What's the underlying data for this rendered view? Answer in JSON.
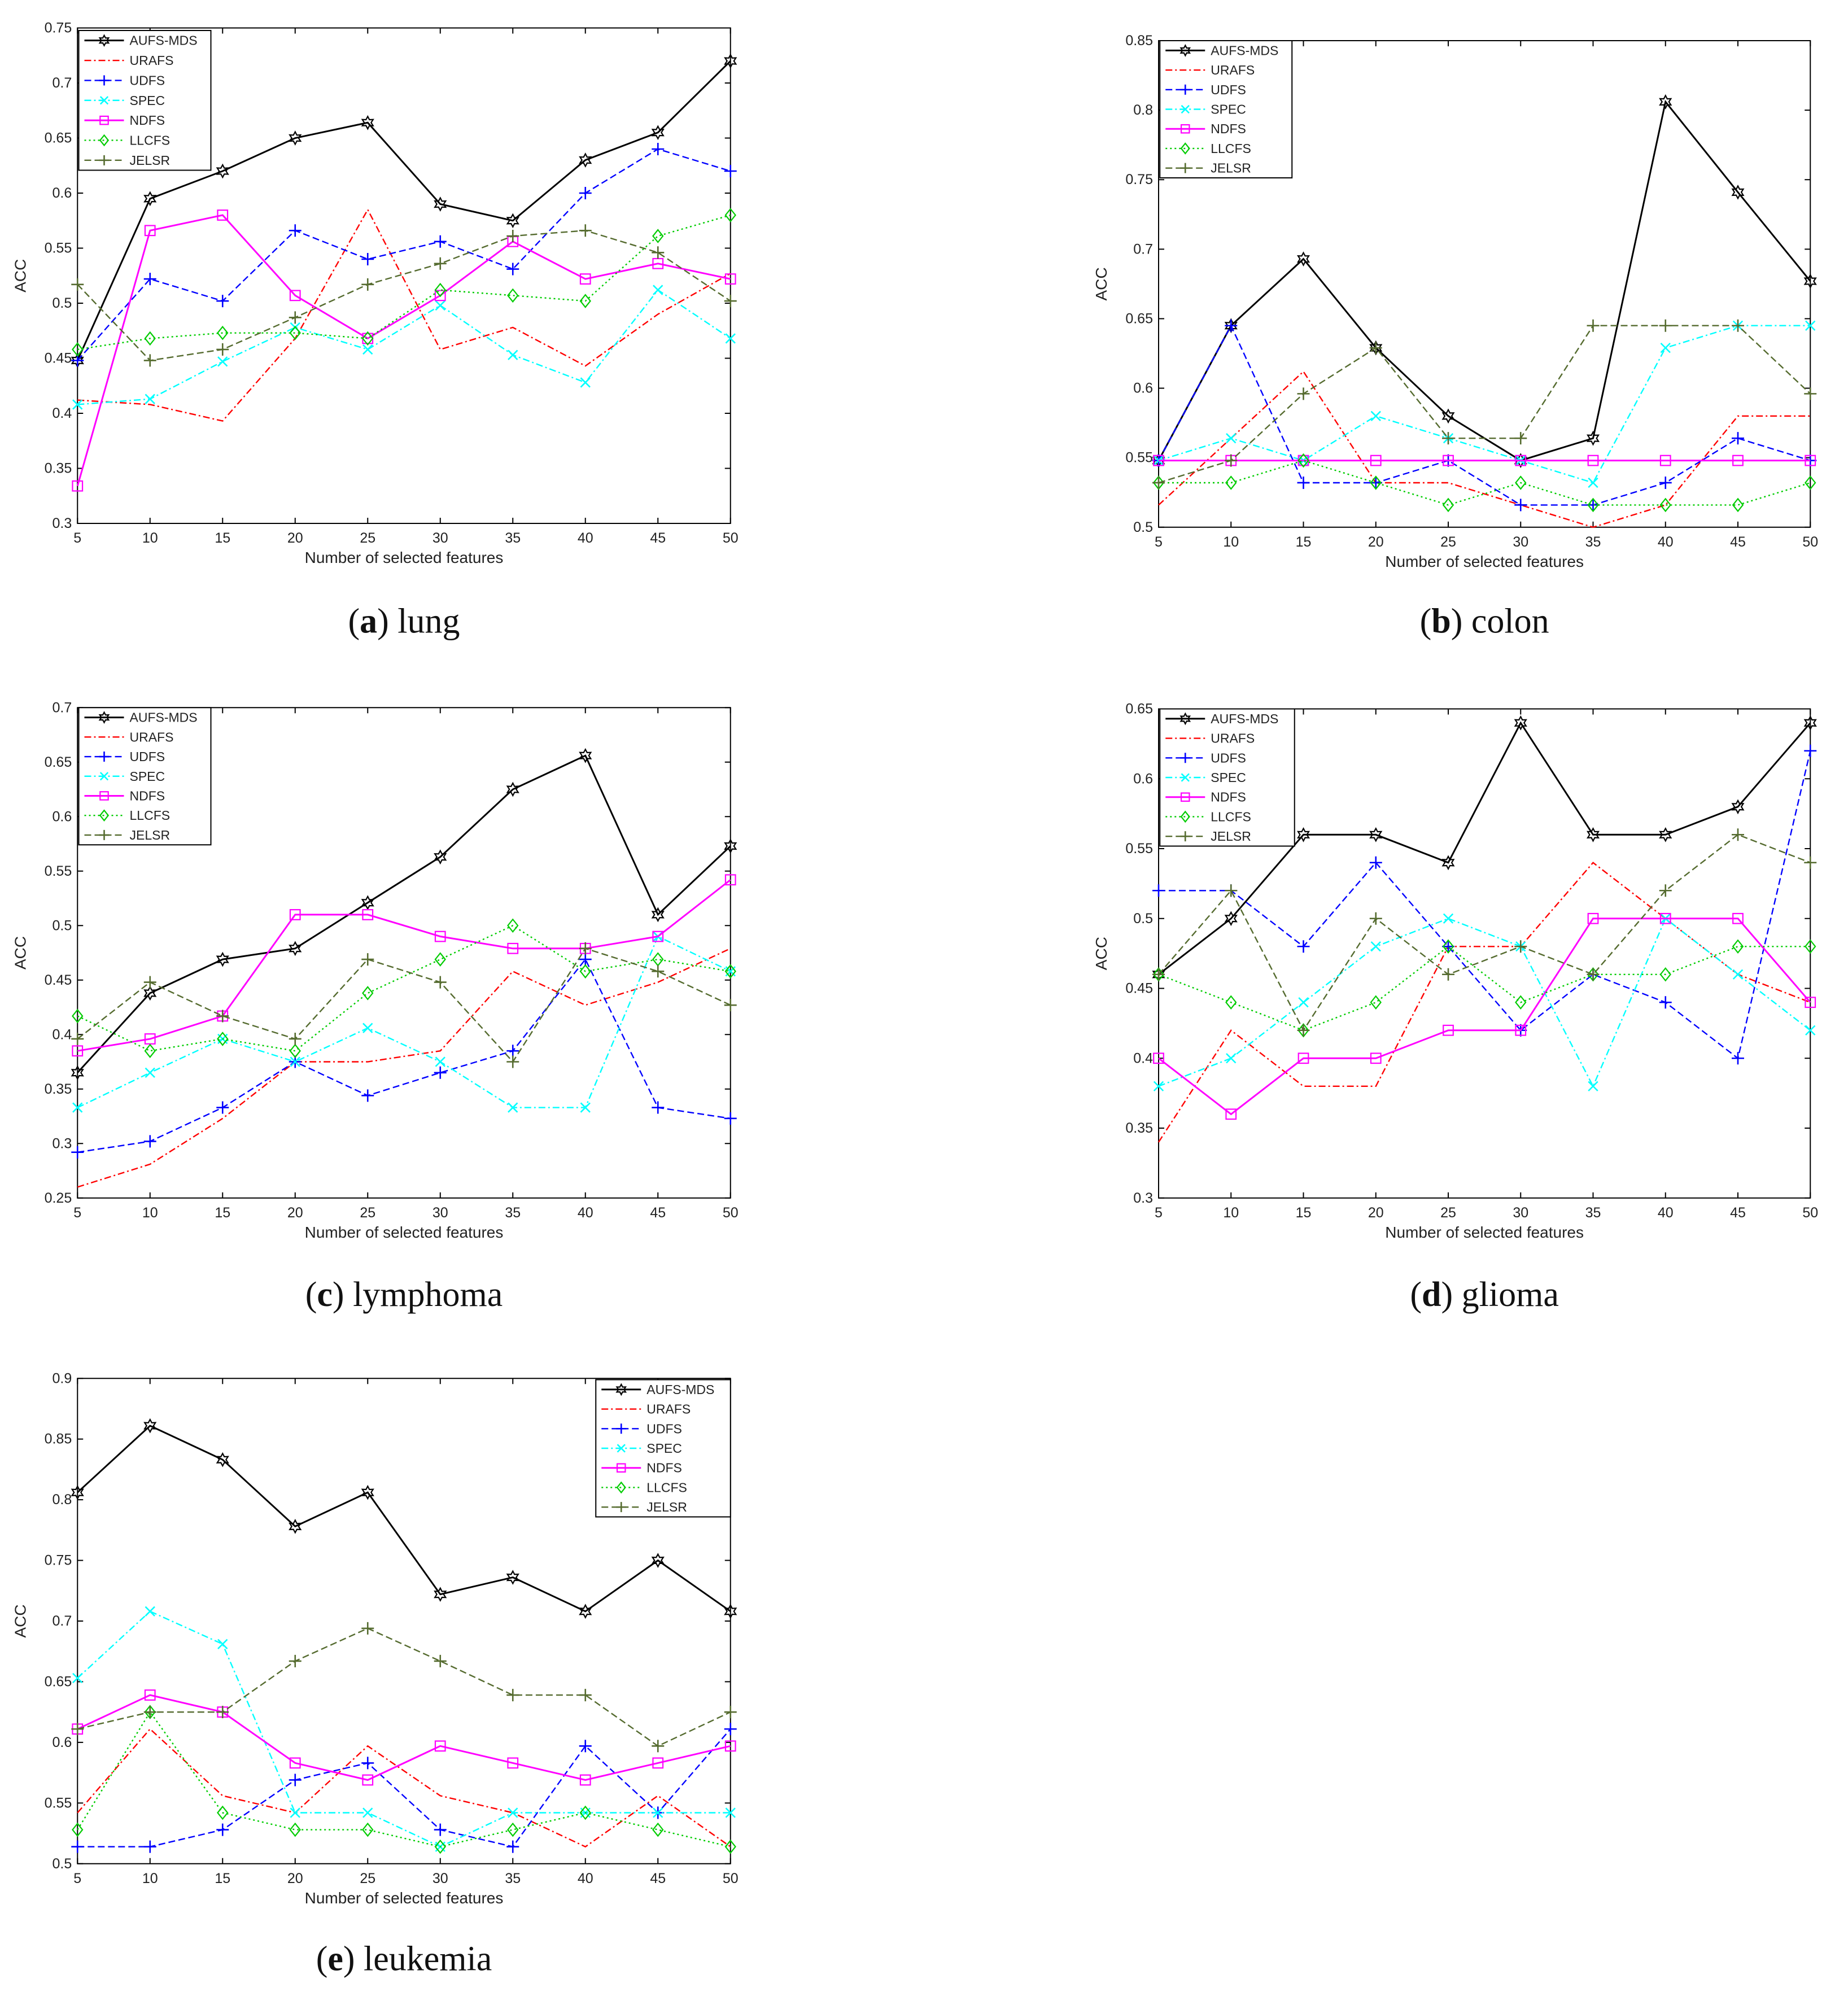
{
  "chart_data": [
    {
      "id": "a",
      "type": "line",
      "caption_label": "(a)",
      "caption_name": "lung",
      "xlabel": "Number of selected features",
      "ylabel": "ACC",
      "xlim": [
        5,
        50
      ],
      "ylim": [
        0.3,
        0.75
      ],
      "x": [
        5,
        10,
        15,
        20,
        25,
        30,
        35,
        40,
        45,
        50
      ],
      "xticks": [
        "5",
        "10",
        "15",
        "20",
        "25",
        "30",
        "35",
        "40",
        "45",
        "50"
      ],
      "yticks": [
        "0.3",
        "0.35",
        "0.4",
        "0.45",
        "0.5",
        "0.55",
        "0.6",
        "0.65",
        "0.7",
        "0.75"
      ],
      "legend_position": "top-left",
      "series": [
        {
          "name": "AUFS-MDS",
          "values": [
            0.448,
            0.595,
            0.62,
            0.65,
            0.664,
            0.59,
            0.575,
            0.63,
            0.655,
            0.72
          ]
        },
        {
          "name": "URAFS",
          "values": [
            0.412,
            0.408,
            0.393,
            0.468,
            0.585,
            0.458,
            0.478,
            0.443,
            0.49,
            0.527
          ]
        },
        {
          "name": "UDFS",
          "values": [
            0.448,
            0.522,
            0.502,
            0.566,
            0.54,
            0.556,
            0.531,
            0.6,
            0.64,
            0.62
          ]
        },
        {
          "name": "SPEC",
          "values": [
            0.408,
            0.413,
            0.447,
            0.478,
            0.458,
            0.498,
            0.453,
            0.428,
            0.512,
            0.468
          ]
        },
        {
          "name": "NDFS",
          "values": [
            0.334,
            0.566,
            0.58,
            0.507,
            0.468,
            0.507,
            0.556,
            0.522,
            0.536,
            0.522
          ]
        },
        {
          "name": "LLCFS",
          "values": [
            0.458,
            0.468,
            0.473,
            0.473,
            0.468,
            0.512,
            0.507,
            0.502,
            0.561,
            0.58
          ]
        },
        {
          "name": "JELSR",
          "values": [
            0.517,
            0.448,
            0.458,
            0.487,
            0.517,
            0.536,
            0.561,
            0.566,
            0.546,
            0.502
          ]
        }
      ]
    },
    {
      "id": "b",
      "type": "line",
      "caption_label": "(b)",
      "caption_name": "colon",
      "xlabel": "Number of selected features",
      "ylabel": "ACC",
      "xlim": [
        5,
        50
      ],
      "ylim": [
        0.5,
        0.85
      ],
      "x": [
        5,
        10,
        15,
        20,
        25,
        30,
        35,
        40,
        45,
        50
      ],
      "xticks": [
        "5",
        "10",
        "15",
        "20",
        "25",
        "30",
        "35",
        "40",
        "45",
        "50"
      ],
      "yticks": [
        "0.5",
        "0.55",
        "0.6",
        "0.65",
        "0.7",
        "0.75",
        "0.8",
        "0.85"
      ],
      "legend_position": "top-left",
      "series": [
        {
          "name": "AUFS-MDS",
          "values": [
            0.548,
            0.645,
            0.693,
            0.629,
            0.58,
            0.548,
            0.564,
            0.806,
            0.741,
            0.677
          ]
        },
        {
          "name": "URAFS",
          "values": [
            0.516,
            0.564,
            0.612,
            0.532,
            0.532,
            0.516,
            0.5,
            0.516,
            0.58,
            0.58
          ]
        },
        {
          "name": "UDFS",
          "values": [
            0.548,
            0.645,
            0.532,
            0.532,
            0.548,
            0.516,
            0.516,
            0.532,
            0.564,
            0.548
          ]
        },
        {
          "name": "SPEC",
          "values": [
            0.548,
            0.564,
            0.548,
            0.58,
            0.564,
            0.548,
            0.532,
            0.629,
            0.645,
            0.645
          ]
        },
        {
          "name": "NDFS",
          "values": [
            0.548,
            0.548,
            0.548,
            0.548,
            0.548,
            0.548,
            0.548,
            0.548,
            0.548,
            0.548
          ]
        },
        {
          "name": "LLCFS",
          "values": [
            0.532,
            0.532,
            0.548,
            0.532,
            0.516,
            0.532,
            0.516,
            0.516,
            0.516,
            0.532
          ]
        },
        {
          "name": "JELSR",
          "values": [
            0.532,
            0.548,
            0.596,
            0.629,
            0.564,
            0.564,
            0.645,
            0.645,
            0.645,
            0.596
          ]
        }
      ]
    },
    {
      "id": "c",
      "type": "line",
      "caption_label": "(c)",
      "caption_name": "lymphoma",
      "xlabel": "Number of selected features",
      "ylabel": "ACC",
      "xlim": [
        5,
        50
      ],
      "ylim": [
        0.25,
        0.7
      ],
      "x": [
        5,
        10,
        15,
        20,
        25,
        30,
        35,
        40,
        45,
        50
      ],
      "xticks": [
        "5",
        "10",
        "15",
        "20",
        "25",
        "30",
        "35",
        "40",
        "45",
        "50"
      ],
      "yticks": [
        "0.25",
        "0.3",
        "0.35",
        "0.4",
        "0.45",
        "0.5",
        "0.55",
        "0.6",
        "0.65",
        "0.7"
      ],
      "legend_position": "top-left",
      "series": [
        {
          "name": "AUFS-MDS",
          "values": [
            0.365,
            0.438,
            0.469,
            0.479,
            0.521,
            0.563,
            0.625,
            0.656,
            0.51,
            0.573
          ]
        },
        {
          "name": "URAFS",
          "values": [
            0.26,
            0.281,
            0.323,
            0.375,
            0.375,
            0.385,
            0.458,
            0.427,
            0.448,
            0.479
          ]
        },
        {
          "name": "UDFS",
          "values": [
            0.292,
            0.302,
            0.333,
            0.375,
            0.344,
            0.365,
            0.385,
            0.469,
            0.333,
            0.323
          ]
        },
        {
          "name": "SPEC",
          "values": [
            0.333,
            0.365,
            0.396,
            0.375,
            0.406,
            0.375,
            0.333,
            0.333,
            0.49,
            0.458
          ]
        },
        {
          "name": "NDFS",
          "values": [
            0.385,
            0.396,
            0.417,
            0.51,
            0.51,
            0.49,
            0.479,
            0.479,
            0.49,
            0.542
          ]
        },
        {
          "name": "LLCFS",
          "values": [
            0.417,
            0.385,
            0.396,
            0.385,
            0.438,
            0.469,
            0.5,
            0.458,
            0.469,
            0.458
          ]
        },
        {
          "name": "JELSR",
          "values": [
            0.396,
            0.448,
            0.417,
            0.396,
            0.469,
            0.448,
            0.375,
            0.479,
            0.458,
            0.427
          ]
        }
      ]
    },
    {
      "id": "d",
      "type": "line",
      "caption_label": "(d)",
      "caption_name": "glioma",
      "xlabel": "Number of selected features",
      "ylabel": "ACC",
      "xlim": [
        5,
        50
      ],
      "ylim": [
        0.3,
        0.65
      ],
      "x": [
        5,
        10,
        15,
        20,
        25,
        30,
        35,
        40,
        45,
        50
      ],
      "xticks": [
        "5",
        "10",
        "15",
        "20",
        "25",
        "30",
        "35",
        "40",
        "45",
        "50"
      ],
      "yticks": [
        "0.3",
        "0.35",
        "0.4",
        "0.45",
        "0.5",
        "0.55",
        "0.6",
        "0.65"
      ],
      "legend_position": "top-left",
      "series": [
        {
          "name": "AUFS-MDS",
          "values": [
            0.46,
            0.5,
            0.56,
            0.56,
            0.54,
            0.64,
            0.56,
            0.56,
            0.58,
            0.64
          ]
        },
        {
          "name": "URAFS",
          "values": [
            0.34,
            0.42,
            0.38,
            0.38,
            0.48,
            0.48,
            0.54,
            0.5,
            0.46,
            0.44
          ]
        },
        {
          "name": "UDFS",
          "values": [
            0.52,
            0.52,
            0.48,
            0.54,
            0.48,
            0.42,
            0.46,
            0.44,
            0.4,
            0.62
          ]
        },
        {
          "name": "SPEC",
          "values": [
            0.38,
            0.4,
            0.44,
            0.48,
            0.5,
            0.48,
            0.38,
            0.5,
            0.46,
            0.42
          ]
        },
        {
          "name": "NDFS",
          "values": [
            0.4,
            0.36,
            0.4,
            0.4,
            0.42,
            0.42,
            0.5,
            0.5,
            0.5,
            0.44
          ]
        },
        {
          "name": "LLCFS",
          "values": [
            0.46,
            0.44,
            0.42,
            0.44,
            0.48,
            0.44,
            0.46,
            0.46,
            0.48,
            0.48
          ]
        },
        {
          "name": "JELSR",
          "values": [
            0.46,
            0.52,
            0.42,
            0.5,
            0.46,
            0.48,
            0.46,
            0.52,
            0.56,
            0.54
          ]
        }
      ]
    },
    {
      "id": "e",
      "type": "line",
      "caption_label": "(e)",
      "caption_name": "leukemia",
      "xlabel": "Number of selected features",
      "ylabel": "ACC",
      "xlim": [
        5,
        50
      ],
      "ylim": [
        0.5,
        0.9
      ],
      "x": [
        5,
        10,
        15,
        20,
        25,
        30,
        35,
        40,
        45,
        50
      ],
      "xticks": [
        "5",
        "10",
        "15",
        "20",
        "25",
        "30",
        "35",
        "40",
        "45",
        "50"
      ],
      "yticks": [
        "0.5",
        "0.55",
        "0.6",
        "0.65",
        "0.7",
        "0.75",
        "0.8",
        "0.85",
        "0.9"
      ],
      "legend_position": "top-right",
      "series": [
        {
          "name": "AUFS-MDS",
          "values": [
            0.806,
            0.861,
            0.833,
            0.778,
            0.806,
            0.722,
            0.736,
            0.708,
            0.75,
            0.708
          ]
        },
        {
          "name": "URAFS",
          "values": [
            0.542,
            0.611,
            0.556,
            0.542,
            0.597,
            0.556,
            0.542,
            0.514,
            0.556,
            0.514
          ]
        },
        {
          "name": "UDFS",
          "values": [
            0.514,
            0.514,
            0.528,
            0.569,
            0.583,
            0.528,
            0.514,
            0.597,
            0.542,
            0.611
          ]
        },
        {
          "name": "SPEC",
          "values": [
            0.653,
            0.708,
            0.681,
            0.542,
            0.542,
            0.514,
            0.542,
            0.542,
            0.542,
            0.542
          ]
        },
        {
          "name": "NDFS",
          "values": [
            0.611,
            0.639,
            0.625,
            0.583,
            0.569,
            0.597,
            0.583,
            0.569,
            0.583,
            0.597
          ]
        },
        {
          "name": "LLCFS",
          "values": [
            0.528,
            0.625,
            0.542,
            0.528,
            0.528,
            0.514,
            0.528,
            0.542,
            0.528,
            0.514
          ]
        },
        {
          "name": "JELSR",
          "values": [
            0.611,
            0.625,
            0.625,
            0.667,
            0.694,
            0.667,
            0.639,
            0.639,
            0.597,
            0.625
          ]
        }
      ]
    }
  ],
  "series_styles": {
    "AUFS-MDS": {
      "color": "#000000",
      "marker": "hexagram",
      "dash": "solid"
    },
    "URAFS": {
      "color": "#ff0000",
      "marker": "none",
      "dash": "dashdot"
    },
    "UDFS": {
      "color": "#0000ff",
      "marker": "plus",
      "dash": "dashed"
    },
    "SPEC": {
      "color": "#00ffff",
      "marker": "x",
      "dash": "dashdot"
    },
    "NDFS": {
      "color": "#ff00ff",
      "marker": "square",
      "dash": "solid"
    },
    "LLCFS": {
      "color": "#00cc00",
      "marker": "diamond",
      "dash": "dotted"
    },
    "JELSR": {
      "color": "#556b2f",
      "marker": "plus",
      "dash": "dashed"
    }
  }
}
